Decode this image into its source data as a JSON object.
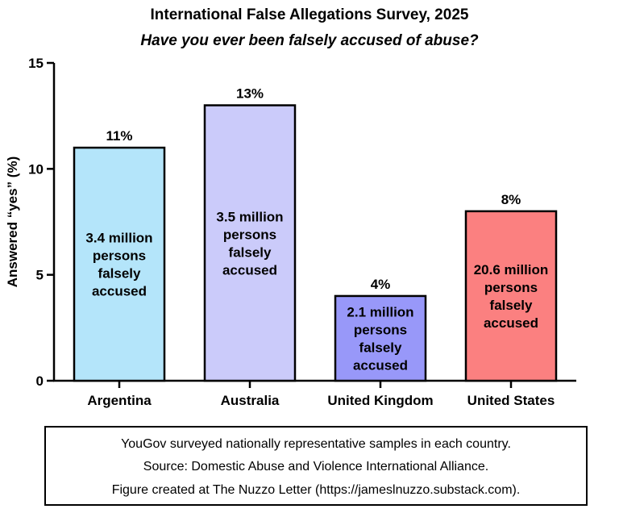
{
  "chart_data": {
    "type": "bar",
    "title": "International False Allegations Survey, 2025",
    "subtitle": "Have you ever been falsely accused of abuse?",
    "ylabel": "Answered “yes” (%)",
    "xlabel": "",
    "ylim": [
      0,
      15
    ],
    "yticks": [
      0,
      5,
      10,
      15
    ],
    "grid": false,
    "categories": [
      "Argentina",
      "Australia",
      "United Kingdom",
      "United States"
    ],
    "values": [
      11,
      13,
      4,
      8
    ],
    "value_labels": [
      "11%",
      "13%",
      "4%",
      "8%"
    ],
    "bar_annotations": [
      [
        "3.4 million",
        "persons",
        "falsely",
        "accused"
      ],
      [
        "3.5 million",
        "persons",
        "falsely",
        "accused"
      ],
      [
        "2.1 million",
        "persons",
        "falsely",
        "accused"
      ],
      [
        "20.6 million",
        "persons",
        "falsely",
        "accused"
      ]
    ],
    "colors": [
      "#b4e5fa",
      "#cbcbfa",
      "#9898f9",
      "#fb8080"
    ]
  },
  "notes": [
    "YouGov surveyed nationally representative samples in each country.",
    "Source: Domestic Abuse and Violence International Alliance.",
    "Figure created at The Nuzzo Letter (https://jameslnuzzo.substack.com)."
  ]
}
